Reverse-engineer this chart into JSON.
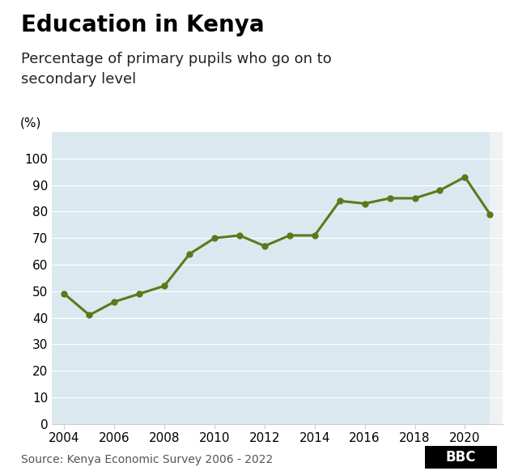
{
  "title": "Education in Kenya",
  "subtitle": "Percentage of primary pupils who go on to\nsecondary level",
  "ylabel": "(%)",
  "source": "Source: Kenya Economic Survey 2006 - 2022",
  "years": [
    2004,
    2005,
    2006,
    2007,
    2008,
    2009,
    2010,
    2011,
    2012,
    2013,
    2014,
    2015,
    2016,
    2017,
    2018,
    2019,
    2020,
    2021
  ],
  "values": [
    49,
    41,
    46,
    49,
    52,
    64,
    70,
    71,
    67,
    71,
    71,
    84,
    83,
    85,
    85,
    88,
    93,
    79
  ],
  "line_color": "#5a7a1a",
  "marker_color": "#5a7a1a",
  "bg_stripe_color": "#dce8f0",
  "plot_bg_color": "#eef2f5",
  "ylim": [
    0,
    110
  ],
  "yticks": [
    0,
    10,
    20,
    30,
    40,
    50,
    60,
    70,
    80,
    90,
    100
  ],
  "xlim": [
    2003.5,
    2021.5
  ],
  "xticks": [
    2004,
    2006,
    2008,
    2010,
    2012,
    2014,
    2016,
    2018,
    2020
  ],
  "title_fontsize": 20,
  "subtitle_fontsize": 13,
  "tick_fontsize": 11,
  "source_fontsize": 10,
  "ylabel_fontsize": 11,
  "line_width": 2.2,
  "marker_size": 5
}
